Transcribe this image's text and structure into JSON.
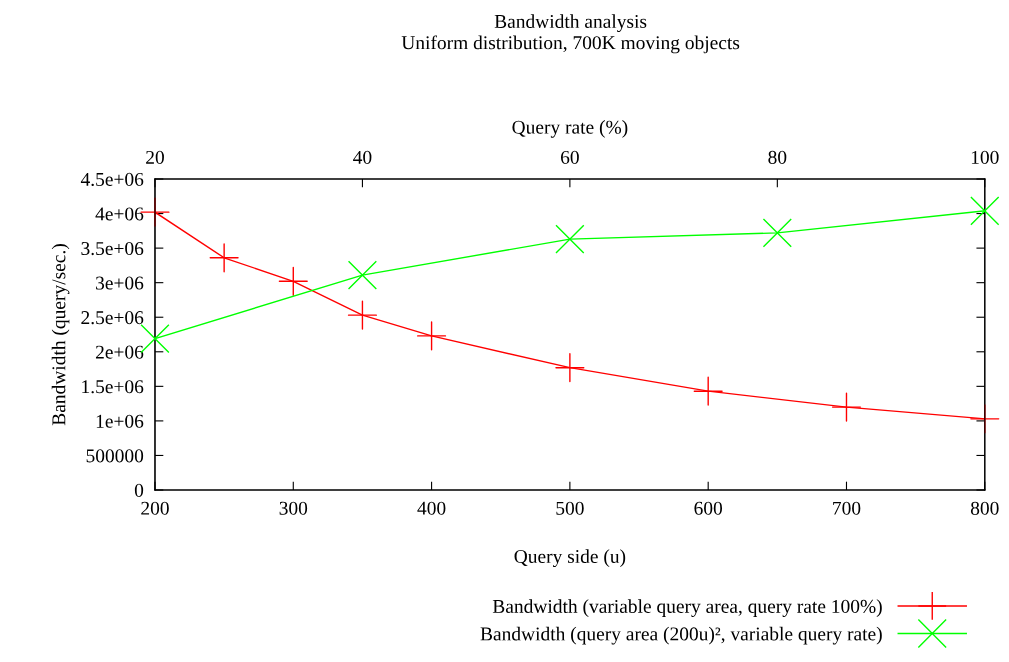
{
  "chart_data": {
    "type": "line",
    "title": "Bandwidth analysis",
    "subtitle": "Uniform distribution, 700K moving objects",
    "xlabel": "Query side (u)",
    "x2label": "Query rate (%)",
    "ylabel": "Bandwidth (query/sec.)",
    "xlim": [
      200,
      800
    ],
    "xticks": [
      200,
      300,
      400,
      500,
      600,
      700,
      800
    ],
    "x2lim": [
      20,
      100
    ],
    "x2ticks": [
      20,
      40,
      60,
      80,
      100
    ],
    "ylim": [
      0,
      4500000
    ],
    "yticks": [
      0,
      500000,
      {
        "value": 1000000,
        "label": "1e+06"
      },
      {
        "value": 1500000,
        "label": "1.5e+06"
      },
      {
        "value": 2000000,
        "label": "2e+06"
      },
      {
        "value": 2500000,
        "label": "2.5e+06"
      },
      {
        "value": 3000000,
        "label": "3e+06"
      },
      {
        "value": 3500000,
        "label": "3.5e+06"
      },
      {
        "value": 4000000,
        "label": "4e+06"
      },
      {
        "value": 4500000,
        "label": "4.5e+06"
      }
    ],
    "grid": false,
    "legend": "bottom right",
    "line_style": "solid",
    "series": [
      {
        "name": "Bandwidth (variable query area, query rate 100%)",
        "color": "#ff0000",
        "marker": "cross",
        "x": [
          200,
          250,
          300,
          350,
          400,
          500,
          600,
          700,
          800
        ],
        "values": [
          4020000,
          3360000,
          3020000,
          2530000,
          2230000,
          1770000,
          1430000,
          1200000,
          1030000
        ]
      },
      {
        "name": "Bandwidth (query area (200u)², variable query rate)",
        "color": "#00ff00",
        "marker": "cross",
        "axis": "x2",
        "x": [
          20,
          40,
          60,
          80,
          100
        ],
        "values": [
          2190000,
          3110000,
          3630000,
          3720000,
          4040000
        ]
      }
    ]
  }
}
